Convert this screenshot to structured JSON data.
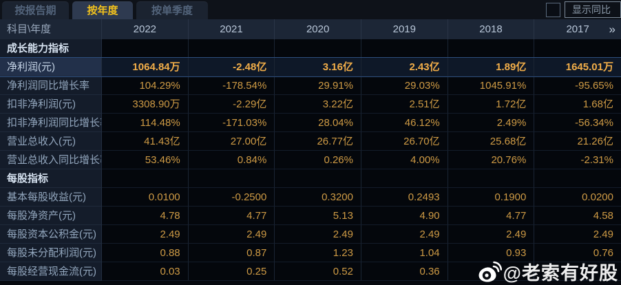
{
  "tabs": [
    {
      "label": "按报告期",
      "active": false
    },
    {
      "label": "按年度",
      "active": true
    },
    {
      "label": "按单季度",
      "active": false
    }
  ],
  "controls": {
    "show_yoy_label": "显示同比",
    "checkbox_checked": false
  },
  "table": {
    "corner_label": "科目\\年度",
    "years": [
      "2022",
      "2021",
      "2020",
      "2019",
      "2018",
      "2017"
    ],
    "more_arrow": "»",
    "sections": [
      {
        "header": "成长能力指标",
        "rows": [
          {
            "label": "净利润(元)",
            "highlighted": true,
            "values": [
              "1064.84万",
              "-2.48亿",
              "3.16亿",
              "2.43亿",
              "1.89亿",
              "1645.01万"
            ]
          },
          {
            "label": "净利润同比增长率",
            "highlighted": false,
            "values": [
              "104.29%",
              "-178.54%",
              "29.91%",
              "29.03%",
              "1045.91%",
              "-95.65%"
            ]
          },
          {
            "label": "扣非净利润(元)",
            "highlighted": false,
            "values": [
              "3308.90万",
              "-2.29亿",
              "3.22亿",
              "2.51亿",
              "1.72亿",
              "1.68亿"
            ]
          },
          {
            "label": "扣非净利润同比增长率",
            "highlighted": false,
            "values": [
              "114.48%",
              "-171.03%",
              "28.04%",
              "46.12%",
              "2.49%",
              "-56.34%"
            ]
          },
          {
            "label": "营业总收入(元)",
            "highlighted": false,
            "values": [
              "41.43亿",
              "27.00亿",
              "26.77亿",
              "26.70亿",
              "25.68亿",
              "21.26亿"
            ]
          },
          {
            "label": "营业总收入同比增长率",
            "highlighted": false,
            "values": [
              "53.46%",
              "0.84%",
              "0.26%",
              "4.00%",
              "20.76%",
              "-2.31%"
            ]
          }
        ]
      },
      {
        "header": "每股指标",
        "rows": [
          {
            "label": "基本每股收益(元)",
            "highlighted": false,
            "values": [
              "0.0100",
              "-0.2500",
              "0.3200",
              "0.2493",
              "0.1900",
              "0.0200"
            ]
          },
          {
            "label": "每股净资产(元)",
            "highlighted": false,
            "values": [
              "4.78",
              "4.77",
              "5.13",
              "4.90",
              "4.77",
              "4.58"
            ]
          },
          {
            "label": "每股资本公积金(元)",
            "highlighted": false,
            "values": [
              "2.49",
              "2.49",
              "2.49",
              "2.49",
              "2.49",
              "2.49"
            ]
          },
          {
            "label": "每股未分配利润(元)",
            "highlighted": false,
            "values": [
              "0.88",
              "0.87",
              "1.23",
              "1.04",
              "0.93",
              "0.76"
            ]
          },
          {
            "label": "每股经营现金流(元)",
            "highlighted": false,
            "values": [
              "0.03",
              "0.25",
              "0.52",
              "0.36",
              "",
              ""
            ]
          }
        ]
      }
    ]
  },
  "watermark": {
    "text": "@老索有好股",
    "icon": "weibo-icon"
  }
}
